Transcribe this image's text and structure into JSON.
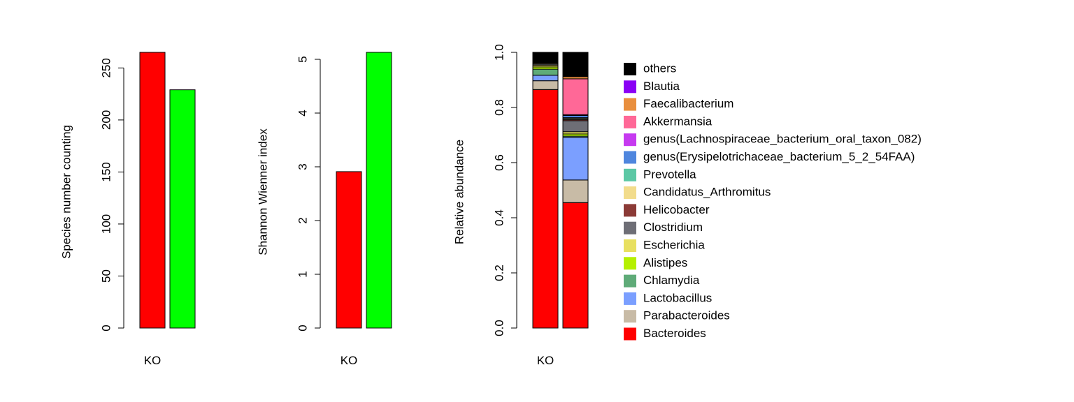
{
  "chart_data": [
    {
      "type": "bar",
      "categories": [
        "KO",
        ""
      ],
      "values": [
        265,
        229
      ],
      "colors": [
        "#FF0000",
        "#00FF00"
      ],
      "xlabel": "",
      "ylabel": "Species number counting",
      "ylim": [
        0,
        265
      ],
      "yticks": [
        0,
        50,
        100,
        150,
        200,
        250
      ],
      "ytick_labels": [
        "0",
        "50",
        "100",
        "150",
        "200",
        "250"
      ],
      "grid": false
    },
    {
      "type": "bar",
      "categories": [
        "KO",
        ""
      ],
      "values": [
        2.91,
        5.13
      ],
      "colors": [
        "#FF0000",
        "#00FF00"
      ],
      "xlabel": "",
      "ylabel": "Shannon Wienner index",
      "ylim": [
        0,
        5.13
      ],
      "yticks": [
        0,
        1,
        2,
        3,
        4,
        5
      ],
      "ytick_labels": [
        "0",
        "1",
        "2",
        "3",
        "4",
        "5"
      ],
      "grid": false
    },
    {
      "type": "bar",
      "stacked": true,
      "categories": [
        "KO",
        ""
      ],
      "xlabel": "",
      "ylabel": "Relative abundance",
      "ylim": [
        0,
        1
      ],
      "yticks": [
        0,
        0.2,
        0.4,
        0.6,
        0.8,
        1.0
      ],
      "ytick_labels": [
        "0.0",
        "0.2",
        "0.4",
        "0.6",
        "0.8",
        "1.0"
      ],
      "grid": false,
      "legend_position": "right",
      "series": [
        {
          "name": "Bacteroides",
          "color": "#FF0000",
          "values": [
            0.865,
            0.455
          ]
        },
        {
          "name": "Parabacteroides",
          "color": "#C8BBA6",
          "values": [
            0.032,
            0.082
          ]
        },
        {
          "name": "Lactobacillus",
          "color": "#7B9FFF",
          "values": [
            0.02,
            0.155
          ]
        },
        {
          "name": "Chlamydia",
          "color": "#5FAB78",
          "values": [
            0.022,
            0.004
          ]
        },
        {
          "name": "Alistipes",
          "color": "#B5F000",
          "values": [
            0.008,
            0.008
          ]
        },
        {
          "name": "Escherichia",
          "color": "#E8E060",
          "values": [
            0.006,
            0.008
          ]
        },
        {
          "name": "Clostridium",
          "color": "#6E6E76",
          "values": [
            0.004,
            0.04
          ]
        },
        {
          "name": "Helicobacter",
          "color": "#8B3A36",
          "values": [
            0.003,
            0.004
          ]
        },
        {
          "name": "Candidatus_Arthromitus",
          "color": "#F2DC8C",
          "values": [
            0.003,
            0.004
          ]
        },
        {
          "name": "Prevotella",
          "color": "#5CC8A5",
          "values": [
            0.002,
            0.003
          ]
        },
        {
          "name": "genus(Erysipelotrichaceae_bacterium_5_2_54FAA)",
          "color": "#4F86DE",
          "values": [
            0.002,
            0.008
          ]
        },
        {
          "name": "genus(Lachnospiraceae_bacterium_oral_taxon_082)",
          "color": "#C63AF0",
          "values": [
            0.001,
            0.003
          ]
        },
        {
          "name": "Akkermansia",
          "color": "#FF6897",
          "values": [
            0.001,
            0.13
          ]
        },
        {
          "name": "Faecalibacterium",
          "color": "#E98F3E",
          "values": [
            0.0,
            0.008
          ]
        },
        {
          "name": "Blautia",
          "color": "#8A00F5",
          "values": [
            0.0,
            0.002
          ]
        },
        {
          "name": "others",
          "color": "#000000",
          "values": [
            0.031,
            0.086
          ]
        }
      ]
    }
  ]
}
